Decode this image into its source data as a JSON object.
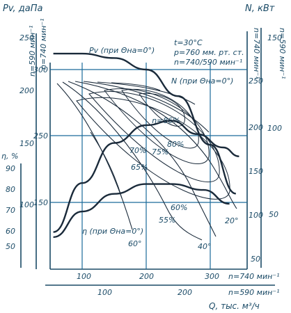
{
  "chart_data": {
    "type": "line",
    "title": "",
    "conditions": [
      "t=30°C",
      "p=760 мм. рт. ст.",
      "n=740/590 мин⁻¹"
    ],
    "y_left_label": "Pv, даПа",
    "y_right_label": "N, кВт",
    "eta_label": "η, %",
    "x_label": "Q, тыс. м³/ч",
    "x_axis_740": {
      "label": "n=740 мин⁻¹",
      "ticks": [
        "100",
        "200",
        "300"
      ],
      "values": [
        100,
        200,
        300
      ]
    },
    "x_axis_590": {
      "label": "n=590 мин⁻¹",
      "ticks": [
        "100",
        "200"
      ],
      "values": [
        100,
        200
      ]
    },
    "pv_axis_590": {
      "label": "n=590 мин⁻¹",
      "ticks": [
        "250",
        "200",
        "150",
        "100"
      ]
    },
    "pv_axis_740": {
      "label": "n=740 мин⁻¹",
      "ticks": [
        "300",
        "250",
        "150"
      ]
    },
    "eta_axis": {
      "ticks": [
        "90",
        "80",
        "70",
        "60",
        "50"
      ]
    },
    "n_axis_740": {
      "label": "n=740 мин⁻¹",
      "ticks": [
        "250",
        "200",
        "150",
        "100",
        "50"
      ]
    },
    "n_axis_590": {
      "label": "n=590 мин⁻¹",
      "ticks": [
        "150",
        "100",
        "50"
      ]
    },
    "grid": true,
    "series": [
      {
        "name": "Pv (при Θна=0°)",
        "x": [
          55,
          100,
          150,
          200,
          250,
          300,
          340
        ],
        "y": [
          318,
          318,
          313,
          300,
          270,
          215,
          160
        ]
      },
      {
        "name": "N (при Θна=0°)",
        "x": [
          55,
          100,
          150,
          200,
          240,
          280,
          320,
          345
        ],
        "y": [
          80,
          135,
          180,
          200,
          205,
          190,
          175,
          165
        ]
      },
      {
        "name": "η (при Θна=0°)",
        "x": [
          55,
          100,
          150,
          200,
          240,
          290,
          330
        ],
        "y": [
          55,
          68,
          77,
          82,
          82,
          79,
          72
        ]
      }
    ],
    "angle_labels": [
      "60°",
      "40°",
      "20°"
    ],
    "efficiency_labels": [
      "η=86%",
      "80%",
      "75%",
      "70%",
      "65%",
      "60%",
      "55%"
    ]
  }
}
